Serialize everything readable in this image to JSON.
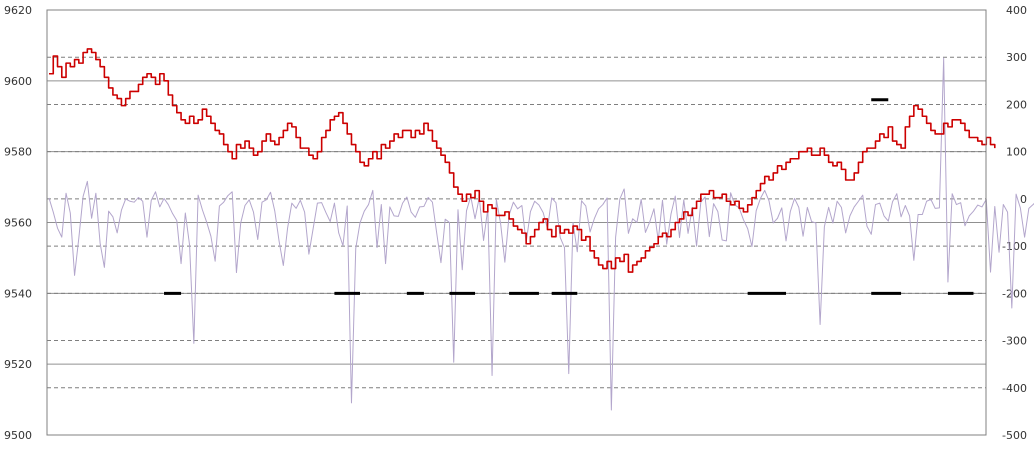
{
  "colors": {
    "price_line": "#cc0000",
    "volume_line": "#b3a6cc",
    "marker": "#000000",
    "solid_grid": "#909090",
    "dashed_grid": "#7f7f7f",
    "frame": "#808080"
  },
  "chart_data": {
    "type": "line",
    "title": "",
    "xlabel": "",
    "ylabel": "",
    "grid": true,
    "legend": "none",
    "y_left": {
      "min": 9500,
      "max": 9620,
      "ticks": [
        "9500",
        "9520",
        "9540",
        "9560",
        "9580",
        "9600",
        "9620"
      ]
    },
    "y_right": {
      "min": -500,
      "max": 400,
      "ticks": [
        "-500",
        "-400",
        "-300",
        "-200",
        "-100",
        "0",
        "100",
        "200",
        "300",
        "400"
      ]
    },
    "x_count": 220,
    "series": [
      {
        "axis": "left",
        "style": "red-line",
        "values": [
          9602,
          9607,
          9604,
          9601,
          9605,
          9604,
          9606,
          9605,
          9608,
          9609,
          9608,
          9606,
          9604,
          9601,
          9598,
          9596,
          9595,
          9593,
          9595,
          9597,
          9597,
          9599,
          9601,
          9602,
          9601,
          9599,
          9602,
          9600,
          9596,
          9593,
          9591,
          9589,
          9588,
          9590,
          9588,
          9589,
          9592,
          9590,
          9588,
          9586,
          9585,
          9582,
          9580,
          9578,
          9582,
          9581,
          9583,
          9581,
          9579,
          9580,
          9583,
          9585,
          9583,
          9582,
          9584,
          9586,
          9588,
          9587,
          9584,
          9581,
          9581,
          9579,
          9578,
          9580,
          9584,
          9586,
          9589,
          9590,
          9591,
          9588,
          9585,
          9582,
          9580,
          9577,
          9576,
          9578,
          9580,
          9578,
          9582,
          9581,
          9583,
          9585,
          9584,
          9586,
          9586,
          9584,
          9586,
          9585,
          9588,
          9586,
          9583,
          9581,
          9579,
          9577,
          9574,
          9570,
          9568,
          9566,
          9568,
          9567,
          9569,
          9566,
          9563,
          9565,
          9564,
          9562,
          9562,
          9563,
          9561,
          9559,
          9558,
          9557,
          9554,
          9556,
          9558,
          9560,
          9561,
          9558,
          9556,
          9559,
          9557,
          9558,
          9557,
          9559,
          9558,
          9555,
          9556,
          9552,
          9550,
          9548,
          9547,
          9549,
          9547,
          9550,
          9549,
          9551,
          9546,
          9548,
          9549,
          9550,
          9552,
          9553,
          9554,
          9556,
          9557,
          9556,
          9558,
          9560,
          9561,
          9563,
          9562,
          9564,
          9566,
          9568,
          9568,
          9569,
          9567,
          9567,
          9568,
          9566,
          9565,
          9566,
          9564,
          9563,
          9565,
          9567,
          9569,
          9571,
          9573,
          9572,
          9574,
          9576,
          9575,
          9577,
          9578,
          9578,
          9580,
          9580,
          9581,
          9579,
          9579,
          9581,
          9579,
          9577,
          9576,
          9577,
          9575,
          9572,
          9572,
          9574,
          9577,
          9580,
          9581,
          9581,
          9583,
          9585,
          9584,
          9587,
          9583,
          9582,
          9581,
          9587,
          9590,
          9593,
          9592,
          9590,
          9588,
          9586,
          9585,
          9585,
          9588,
          9587,
          9589,
          9589,
          9588,
          9586,
          9584,
          9584,
          9583,
          9582,
          9584,
          9582,
          9581
        ]
      },
      {
        "axis": "right",
        "style": "thin-lavender-line",
        "values": [
          2,
          -28,
          -62,
          -81,
          12,
          -30,
          -162,
          -83,
          5,
          37,
          -41,
          12,
          -94,
          -145,
          -26,
          -38,
          -72,
          -24,
          0,
          -5,
          -7,
          3,
          -5,
          -81,
          -3,
          15,
          -17,
          1,
          -12,
          -31,
          -46,
          -137,
          -30,
          -98,
          -306,
          8,
          -23,
          -49,
          -79,
          -132,
          -15,
          -7,
          7,
          15,
          -156,
          -51,
          -14,
          -2,
          -28,
          -86,
          -7,
          -2,
          14,
          -26,
          -89,
          -141,
          -62,
          -9,
          -20,
          -3,
          -28,
          -117,
          -63,
          -9,
          -8,
          -29,
          -48,
          -9,
          -72,
          -99,
          -15,
          -432,
          -105,
          -51,
          -26,
          -12,
          18,
          -103,
          -12,
          -137,
          -17,
          -36,
          -37,
          -9,
          4,
          -28,
          -39,
          -17,
          -16,
          3,
          -7,
          -72,
          -135,
          -43,
          -50,
          -346,
          -23,
          -150,
          -25,
          5,
          -42,
          3,
          -88,
          -21,
          -374,
          -1,
          -52,
          -134,
          -34,
          -7,
          -21,
          -14,
          -93,
          -27,
          -5,
          -13,
          -29,
          -63,
          2,
          -8,
          -82,
          -103,
          -370,
          -50,
          -112,
          -4,
          -15,
          -70,
          -42,
          -21,
          -12,
          2,
          -447,
          -81,
          0,
          21,
          -73,
          -42,
          -50,
          -1,
          -71,
          -49,
          -21,
          -88,
          -3,
          -96,
          -32,
          6,
          -82,
          -2,
          -73,
          -18,
          -100,
          -7,
          4,
          -80,
          -10,
          -27,
          -87,
          -89,
          13,
          -13,
          -19,
          -44,
          -63,
          -101,
          -25,
          1,
          18,
          -4,
          -51,
          -41,
          -19,
          -89,
          -27,
          1,
          -18,
          -79,
          -18,
          -48,
          -51,
          -266,
          -59,
          -18,
          -51,
          -5,
          -18,
          -72,
          -36,
          -17,
          -5,
          8,
          -58,
          -75,
          -12,
          -9,
          -36,
          -47,
          -6,
          11,
          -38,
          -14,
          -36,
          -130,
          -33,
          -33,
          -5,
          -1,
          -20,
          -19,
          298,
          -176,
          11,
          -12,
          -8,
          -57,
          -36,
          -26,
          -13,
          -17,
          -1,
          -155,
          -16,
          -113,
          -12,
          -28,
          -231,
          10,
          -19,
          -81,
          -20,
          -12,
          -2
        ]
      }
    ],
    "markers": [
      {
        "axis": "right",
        "x_start": 27,
        "x_end": 31,
        "y": -200
      },
      {
        "axis": "right",
        "x_start": 67,
        "x_end": 73,
        "y": -200
      },
      {
        "axis": "right",
        "x_start": 84,
        "x_end": 88,
        "y": -200
      },
      {
        "axis": "right",
        "x_start": 94,
        "x_end": 100,
        "y": -200
      },
      {
        "axis": "right",
        "x_start": 108,
        "x_end": 115,
        "y": -200
      },
      {
        "axis": "right",
        "x_start": 118,
        "x_end": 124,
        "y": -200
      },
      {
        "axis": "right",
        "x_start": 164,
        "x_end": 173,
        "y": -200
      },
      {
        "axis": "right",
        "x_start": 193,
        "x_end": 197,
        "y": 210
      },
      {
        "axis": "right",
        "x_start": 193,
        "x_end": 200,
        "y": -200
      },
      {
        "axis": "right",
        "x_start": 211,
        "x_end": 217,
        "y": -200
      }
    ]
  }
}
